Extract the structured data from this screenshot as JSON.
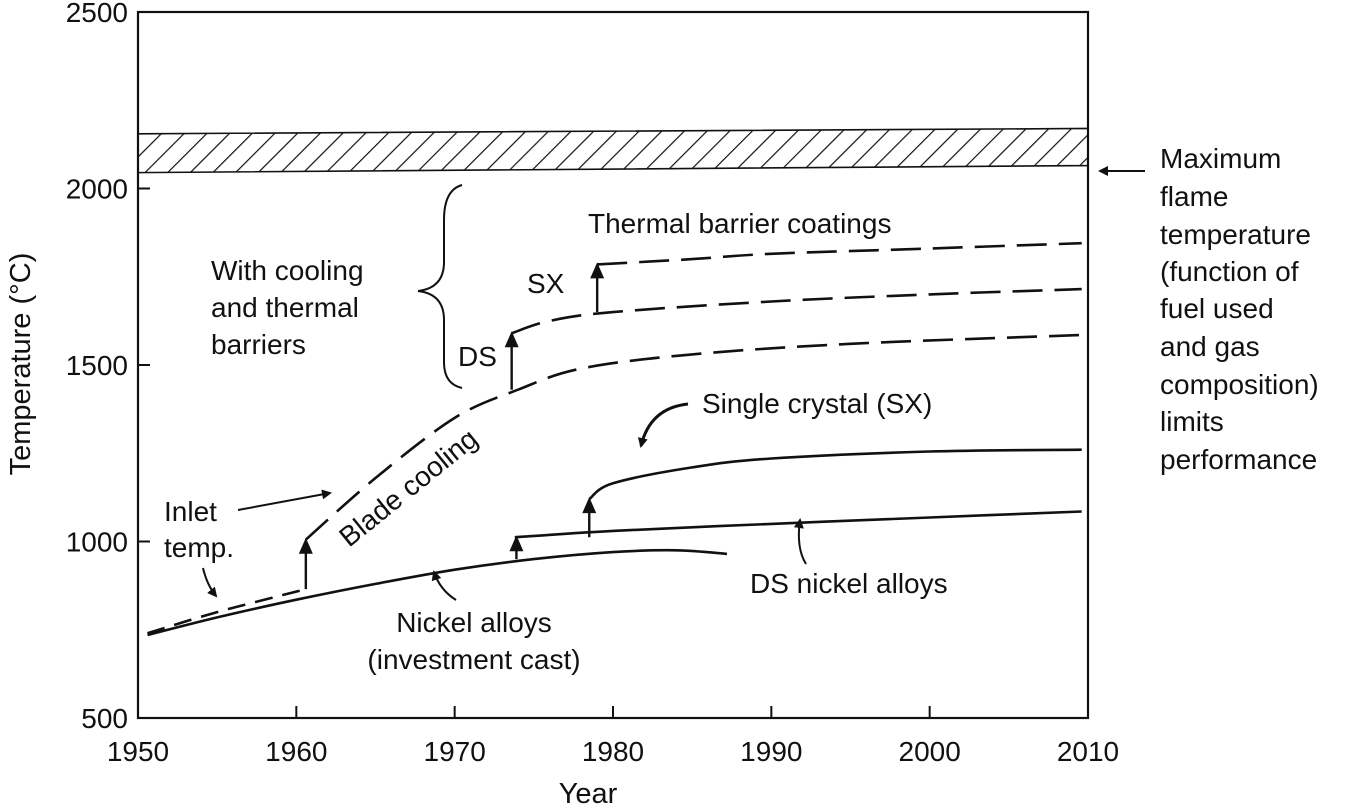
{
  "chart_data": {
    "type": "line",
    "xlabel": "Year",
    "ylabel": "Temperature (°C)",
    "xlim": [
      1950,
      2010
    ],
    "ylim": [
      500,
      2500
    ],
    "xticks": [
      "1950",
      "1960",
      "1970",
      "1980",
      "1990",
      "2000",
      "2010"
    ],
    "yticks": [
      "500",
      "1000",
      "1500",
      "2000",
      "2500"
    ],
    "grid": false,
    "legend": "none",
    "series": [
      {
        "name": "Nickel alloys (investment cast)",
        "style": "solid",
        "x": [
          1950.6,
          1955,
          1960,
          1965,
          1970,
          1975,
          1980,
          1984,
          1987.2
        ],
        "y": [
          735,
          785,
          835,
          880,
          920,
          950,
          970,
          975,
          965
        ]
      },
      {
        "name": "DS nickel alloys",
        "style": "solid",
        "x": [
          1973.8,
          1980,
          1990,
          2000,
          2009.6
        ],
        "y": [
          1012,
          1030,
          1050,
          1068,
          1085
        ]
      },
      {
        "name": "Single crystal (SX)",
        "style": "solid",
        "x": [
          1978.5,
          1980,
          1985,
          1990,
          2000,
          2009.6
        ],
        "y": [
          1120,
          1165,
          1210,
          1235,
          1255,
          1260
        ]
      },
      {
        "name": "Inlet temp.",
        "style": "dashed",
        "x": [
          1950.6,
          1955,
          1960.6
        ],
        "y": [
          740,
          800,
          865
        ]
      },
      {
        "name": "Blade cooling",
        "style": "dashed",
        "x": [
          1960.6,
          1965,
          1970,
          1974,
          1978,
          1985,
          1995,
          2009.6
        ],
        "y": [
          1005,
          1180,
          1350,
          1430,
          1490,
          1530,
          1560,
          1585
        ]
      },
      {
        "name": "DS",
        "style": "dashed",
        "x": [
          1973.6,
          1976,
          1980,
          1990,
          2000,
          2009.6
        ],
        "y": [
          1590,
          1625,
          1650,
          1680,
          1700,
          1715
        ]
      },
      {
        "name": "SX",
        "style": "dashed",
        "x": [
          1979,
          1985,
          1990,
          2000,
          2009.6
        ],
        "y": [
          1785,
          1800,
          1815,
          1830,
          1845
        ]
      },
      {
        "name": "Maximum flame temperature",
        "style": "hatched band",
        "x": [
          1950,
          2010
        ],
        "y_low": [
          2045,
          2065
        ],
        "y_high": [
          2155,
          2170
        ]
      }
    ],
    "jumps": [
      {
        "x": 1960.6,
        "from": 865,
        "to": 1005
      },
      {
        "x": 1973.9,
        "from": 950,
        "to": 1012
      },
      {
        "x": 1973.6,
        "from": 1430,
        "to": 1590
      },
      {
        "x": 1978.5,
        "from": 1012,
        "to": 1120
      },
      {
        "x": 1979,
        "from": 1650,
        "to": 1785
      }
    ],
    "annotations": {
      "with_cooling": [
        "With cooling",
        "and thermal",
        "barriers"
      ],
      "tbc": "Thermal barrier coatings",
      "sx_short": "SX",
      "ds_short": "DS",
      "single_crystal": "Single crystal (SX)",
      "blade_cooling": "Blade cooling",
      "inlet": [
        "Inlet",
        "temp."
      ],
      "ds_nickel": "DS nickel alloys",
      "nickel": [
        "Nickel alloys",
        "(investment cast)"
      ],
      "flame": [
        "Maximum",
        "flame",
        "temperature",
        "(function of",
        "fuel used",
        "and gas",
        "composition)",
        "limits",
        "performance"
      ]
    }
  }
}
